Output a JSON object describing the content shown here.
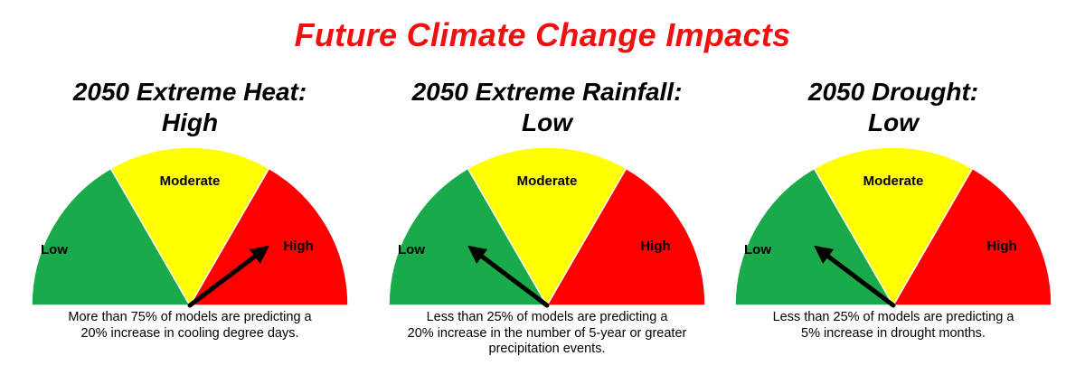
{
  "title": "Future Climate Change Impacts",
  "colors": {
    "title": "#ee1111",
    "low": "#1aaa4a",
    "moderate": "#ffff00",
    "high": "#ff0000",
    "needle": "#000000"
  },
  "zone_labels": {
    "low": "Low",
    "moderate": "Moderate",
    "high": "High"
  },
  "panels": [
    {
      "title_line1": "2050 Extreme Heat:",
      "title_line2": "High",
      "level": "high",
      "caption_lines": [
        "More than 75% of models are predicting a",
        "20% increase in cooling degree days."
      ]
    },
    {
      "title_line1": "2050 Extreme Rainfall:",
      "title_line2": "Low",
      "level": "low",
      "caption_lines": [
        "Less than 25% of models are predicting a",
        "20% increase in the number of 5-year or greater",
        "precipitation events."
      ]
    },
    {
      "title_line1": "2050 Drought:",
      "title_line2": "Low",
      "level": "low",
      "caption_lines": [
        "Less than 25% of models are predicting a",
        "5% increase in drought months."
      ]
    }
  ]
}
